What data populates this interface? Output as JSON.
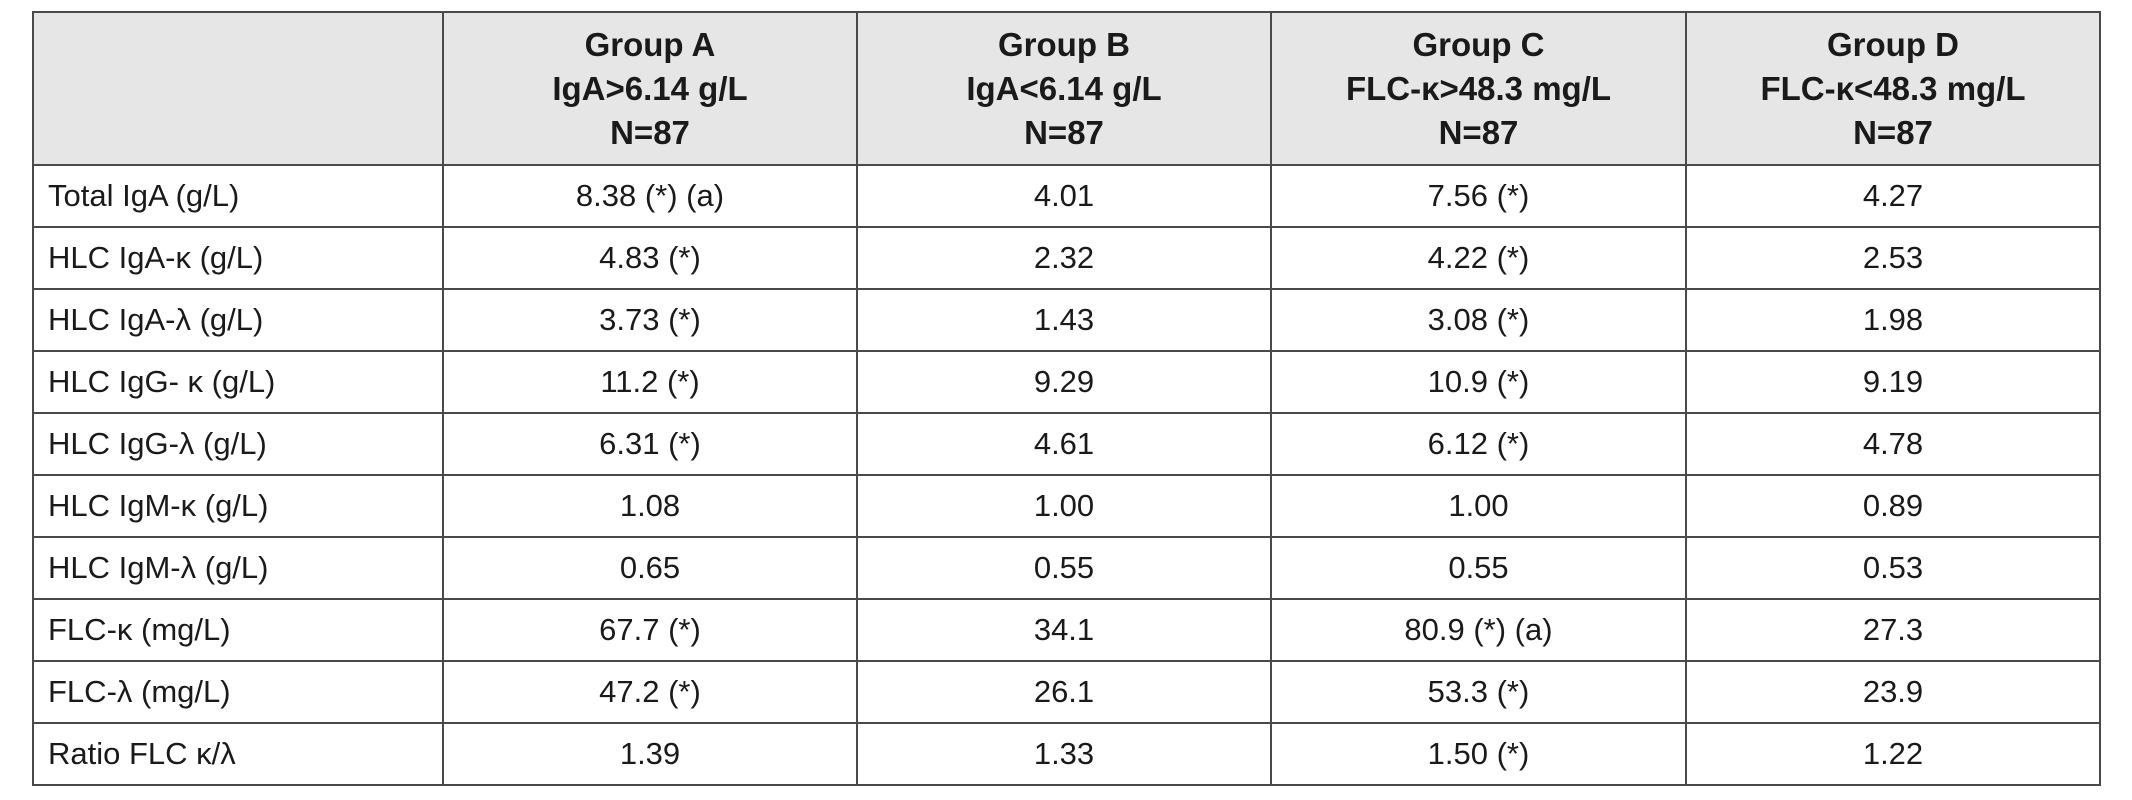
{
  "table": {
    "corner": "",
    "groups": [
      {
        "name": "Group A",
        "criterion": "IgA>6.14 g/L",
        "n": "N=87"
      },
      {
        "name": "Group B",
        "criterion": "IgA<6.14 g/L",
        "n": "N=87"
      },
      {
        "name": "Group C",
        "criterion": "FLC-κ>48.3 mg/L",
        "n": "N=87"
      },
      {
        "name": "Group D",
        "criterion": "FLC-κ<48.3 mg/L",
        "n": "N=87"
      }
    ],
    "rows": [
      {
        "label": "Total IgA (g/L)",
        "values": [
          "8.38 (*) (a)",
          "4.01",
          "7.56 (*)",
          "4.27"
        ]
      },
      {
        "label": "HLC IgA-κ (g/L)",
        "values": [
          "4.83 (*)",
          "2.32",
          "4.22 (*)",
          "2.53"
        ]
      },
      {
        "label": "HLC IgA-λ (g/L)",
        "values": [
          "3.73 (*)",
          "1.43",
          "3.08 (*)",
          "1.98"
        ]
      },
      {
        "label": "HLC IgG- κ (g/L)",
        "values": [
          "11.2 (*)",
          "9.29",
          "10.9 (*)",
          "9.19"
        ]
      },
      {
        "label": "HLC IgG-λ (g/L)",
        "values": [
          "6.31 (*)",
          "4.61",
          "6.12 (*)",
          "4.78"
        ]
      },
      {
        "label": "HLC IgM-κ (g/L)",
        "values": [
          "1.08",
          "1.00",
          "1.00",
          "0.89"
        ]
      },
      {
        "label": "HLC IgM-λ (g/L)",
        "values": [
          "0.65",
          "0.55",
          "0.55",
          "0.53"
        ]
      },
      {
        "label": "FLC-κ (mg/L)",
        "values": [
          "67.7 (*)",
          "34.1",
          "80.9 (*) (a)",
          "27.3"
        ]
      },
      {
        "label": "FLC-λ (mg/L)",
        "values": [
          "47.2 (*)",
          "26.1",
          "53.3 (*)",
          "23.9"
        ]
      },
      {
        "label": "Ratio FLC κ/λ",
        "values": [
          "1.39",
          "1.33",
          "1.50 (*)",
          "1.22"
        ]
      }
    ]
  }
}
